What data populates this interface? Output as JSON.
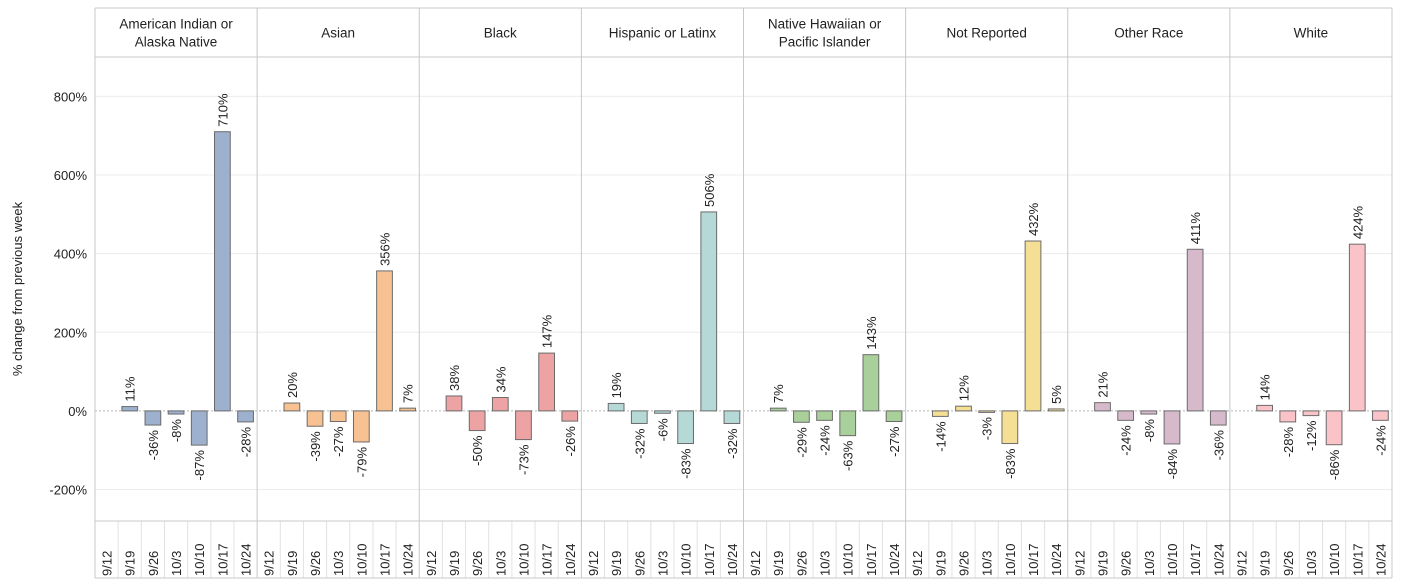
{
  "chart_data": {
    "type": "bar",
    "ylabel": "% change from previous week",
    "ylim": [
      -280,
      900
    ],
    "yticks": [
      -200,
      0,
      200,
      400,
      600,
      800
    ],
    "ytick_labels": [
      "-200%",
      "0%",
      "200%",
      "400%",
      "600%",
      "800%"
    ],
    "categories": [
      "9/12",
      "9/19",
      "9/26",
      "10/3",
      "10/10",
      "10/17",
      "10/24"
    ],
    "grid": "horizontal",
    "zero_line": "dashed",
    "panels": [
      {
        "title": "American Indian or Alaska Native",
        "title_lines": [
          "American Indian or",
          "Alaska Native"
        ],
        "color": "#9db1cf",
        "values": [
          null,
          11,
          -36,
          -8,
          -87,
          710,
          -28
        ],
        "labels": [
          "",
          "11%",
          "-36%",
          "-8%",
          "-87%",
          "710%",
          "-28%"
        ]
      },
      {
        "title": "Asian",
        "title_lines": [
          "Asian"
        ],
        "color": "#f7c192",
        "values": [
          null,
          20,
          -39,
          -27,
          -79,
          356,
          7
        ],
        "labels": [
          "",
          "20%",
          "-39%",
          "-27%",
          "-79%",
          "356%",
          "7%"
        ]
      },
      {
        "title": "Black",
        "title_lines": [
          "Black"
        ],
        "color": "#eda3a3",
        "values": [
          null,
          38,
          -50,
          34,
          -73,
          147,
          -26
        ],
        "labels": [
          "",
          "38%",
          "-50%",
          "34%",
          "-73%",
          "147%",
          "-26%"
        ]
      },
      {
        "title": "Hispanic or Latinx",
        "title_lines": [
          "Hispanic or Latinx"
        ],
        "color": "#b5d9d6",
        "values": [
          null,
          19,
          -32,
          -6,
          -83,
          506,
          -32
        ],
        "labels": [
          "",
          "19%",
          "-32%",
          "-6%",
          "-83%",
          "506%",
          "-32%"
        ]
      },
      {
        "title": "Native Hawaiian or Pacific Islander",
        "title_lines": [
          "Native Hawaiian or",
          "Pacific Islander"
        ],
        "color": "#a9cf9b",
        "values": [
          null,
          7,
          -29,
          -24,
          -63,
          143,
          -27
        ],
        "labels": [
          "",
          "7%",
          "-29%",
          "-24%",
          "-63%",
          "143%",
          "-27%"
        ]
      },
      {
        "title": "Not Reported",
        "title_lines": [
          "Not Reported"
        ],
        "color": "#f5df95",
        "values": [
          null,
          -14,
          12,
          -3,
          -83,
          432,
          5
        ],
        "labels": [
          "",
          "-14%",
          "12%",
          "-3%",
          "-83%",
          "432%",
          "5%"
        ]
      },
      {
        "title": "Other Race",
        "title_lines": [
          "Other Race"
        ],
        "color": "#d7b9cc",
        "values": [
          null,
          21,
          -24,
          -8,
          -84,
          411,
          -36
        ],
        "labels": [
          "",
          "21%",
          "-24%",
          "-8%",
          "-84%",
          "411%",
          "-36%"
        ]
      },
      {
        "title": "White",
        "title_lines": [
          "White"
        ],
        "color": "#fac3c8",
        "values": [
          null,
          14,
          -28,
          -12,
          -86,
          424,
          -24
        ],
        "labels": [
          "",
          "14%",
          "-28%",
          "-12%",
          "-86%",
          "424%",
          "-24%"
        ]
      }
    ]
  }
}
